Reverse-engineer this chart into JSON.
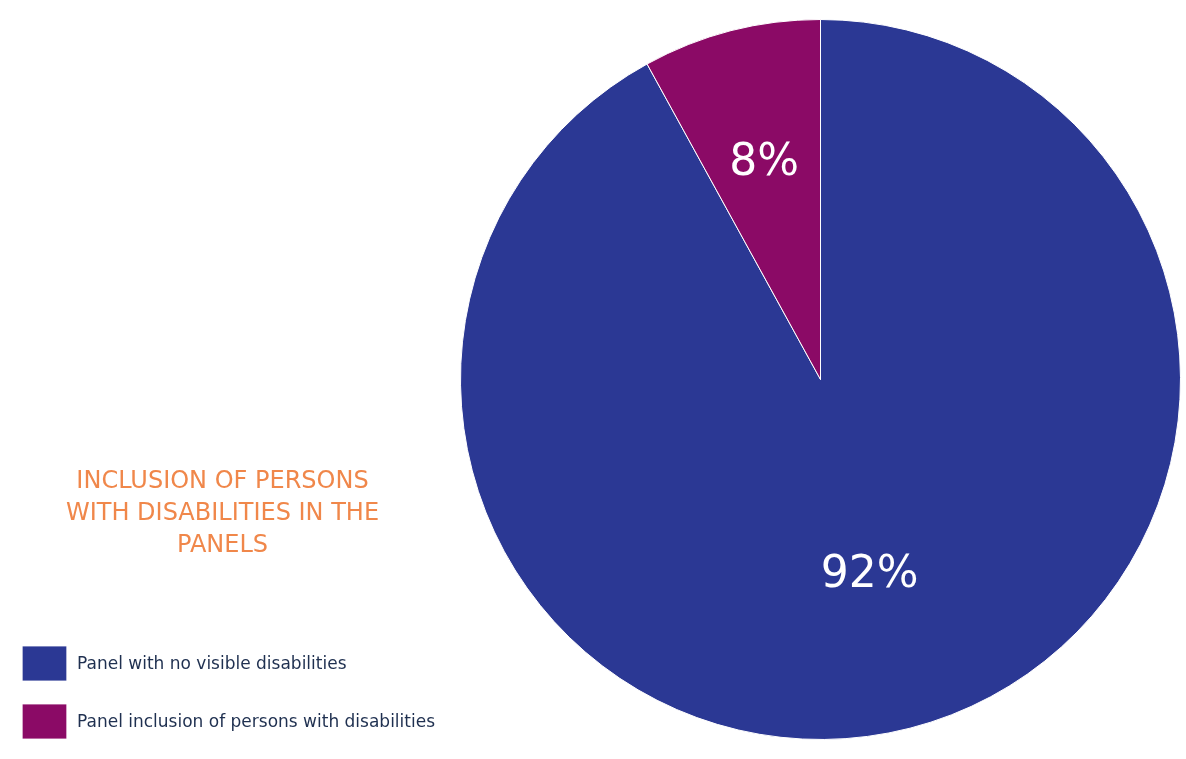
{
  "chart_data": {
    "type": "pie",
    "title": "INCLUSION OF PERSONS WITH DISABILITIES IN THE PANELS",
    "categories": [
      "Panel with no visible disabilities",
      "Panel inclusion of persons with disabilities"
    ],
    "values": [
      92,
      8
    ],
    "colors": [
      "#2b3894",
      "#8b0a66"
    ],
    "value_labels": [
      "92%",
      "8%"
    ],
    "legend": "bottom left"
  }
}
